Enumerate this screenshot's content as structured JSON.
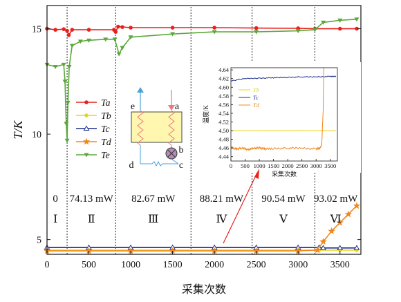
{
  "chart_data": {
    "type": "line",
    "title": "",
    "xlabel": "采集次数",
    "ylabel": "T/K",
    "xlim": [
      0,
      3750
    ],
    "ylim": [
      4.3,
      16.1
    ],
    "xticks": [
      0,
      500,
      1000,
      1500,
      2000,
      2500,
      3000,
      3500
    ],
    "yticks": [
      5,
      10,
      15
    ],
    "grid": false,
    "legend_position": "left-middle",
    "section_boundaries": [
      240,
      820,
      1720,
      2450,
      3200
    ],
    "sections": [
      {
        "roman": "Ⅰ",
        "power": "0",
        "xc": 100
      },
      {
        "roman": "Ⅱ",
        "power": "74.13 mW",
        "xc": 530
      },
      {
        "roman": "Ⅲ",
        "power": "82.67 mW",
        "xc": 1270
      },
      {
        "roman": "Ⅳ",
        "power": "88.21 mW",
        "xc": 2085
      },
      {
        "roman": "Ⅴ",
        "power": "90.54 mW",
        "xc": 2825
      },
      {
        "roman": "Ⅵ",
        "power": "93.02 mW",
        "xc": 3450
      }
    ],
    "series": [
      {
        "name": "Ta",
        "color": "#e8201e",
        "marker": "circle",
        "x": [
          0,
          100,
          200,
          240,
          260,
          300,
          500,
          800,
          820,
          850,
          900,
          1000,
          1500,
          2000,
          2500,
          3000,
          3200,
          3500,
          3700
        ],
        "y": [
          15.0,
          14.95,
          14.98,
          14.9,
          14.7,
          14.95,
          14.95,
          14.95,
          14.85,
          15.1,
          15.08,
          15.05,
          15.05,
          15.05,
          15.03,
          15.02,
          15.0,
          15.0,
          15.0
        ]
      },
      {
        "name": "Tb",
        "color": "#e8d51e",
        "marker": "circle",
        "x": [
          0,
          500,
          1000,
          1500,
          2000,
          2500,
          3000,
          3250,
          3500,
          3700
        ],
        "y": [
          4.5,
          4.5,
          4.5,
          4.5,
          4.5,
          4.5,
          4.5,
          4.5,
          4.5,
          4.5
        ]
      },
      {
        "name": "Tc",
        "color": "#1d2f8a",
        "marker": "triangle-open",
        "x": [
          0,
          500,
          1000,
          1500,
          2000,
          2500,
          3000,
          3250,
          3300,
          3500,
          3700
        ],
        "y": [
          4.62,
          4.62,
          4.62,
          4.62,
          4.62,
          4.62,
          4.62,
          4.62,
          4.6,
          4.6,
          4.6
        ]
      },
      {
        "name": "Td",
        "color": "#f0881c",
        "marker": "star",
        "x": [
          0,
          500,
          1000,
          1500,
          2000,
          2500,
          3000,
          3230,
          3300,
          3400,
          3500,
          3600,
          3700
        ],
        "y": [
          4.46,
          4.46,
          4.46,
          4.46,
          4.46,
          4.46,
          4.46,
          4.5,
          4.9,
          5.4,
          5.8,
          6.2,
          6.6
        ]
      },
      {
        "name": "Te",
        "color": "#5aa83a",
        "marker": "triangle-down",
        "x": [
          0,
          100,
          200,
          215,
          230,
          240,
          250,
          265,
          300,
          400,
          500,
          700,
          810,
          860,
          900,
          1000,
          1500,
          2000,
          2500,
          3000,
          3200,
          3300,
          3500,
          3700
        ],
        "y": [
          13.3,
          13.2,
          13.3,
          12.5,
          10.5,
          9.7,
          11.5,
          13.2,
          14.2,
          14.4,
          14.45,
          14.5,
          14.5,
          13.8,
          14.1,
          14.6,
          14.75,
          14.85,
          14.85,
          14.9,
          14.95,
          15.3,
          15.4,
          15.45
        ]
      }
    ],
    "annotations": {
      "schematic_labels": [
        "e",
        "a",
        "b",
        "c",
        "d"
      ]
    },
    "inset": {
      "type": "line",
      "xlabel": "采集次数",
      "ylabel": "温度/K",
      "xlim": [
        0,
        3750
      ],
      "ylim": [
        4.43,
        4.645
      ],
      "xticks": [
        0,
        500,
        1000,
        1500,
        2000,
        2500,
        3000,
        3500
      ],
      "yticks": [
        4.44,
        4.46,
        4.48,
        4.5,
        4.52,
        4.54,
        4.56,
        4.58,
        4.6,
        4.62,
        4.64
      ],
      "series": [
        {
          "name": "Tb",
          "color": "#e8d51e",
          "x": [
            0,
            500,
            1000,
            1500,
            2000,
            2500,
            3000,
            3500,
            3700
          ],
          "y": [
            4.5,
            4.5,
            4.5,
            4.5,
            4.5,
            4.5,
            4.5,
            4.5,
            4.5
          ]
        },
        {
          "name": "Tc",
          "color": "#1d2f8a",
          "x": [
            0,
            500,
            1000,
            1500,
            2000,
            2500,
            3000,
            3500,
            3700
          ],
          "y": [
            4.615,
            4.62,
            4.621,
            4.622,
            4.623,
            4.624,
            4.624,
            4.625,
            4.625
          ]
        },
        {
          "name": "Td",
          "color": "#f0881c",
          "x": [
            0,
            200,
            400,
            600,
            800,
            1000,
            1200,
            1500,
            2000,
            2500,
            3000,
            3150,
            3200,
            3250,
            3270
          ],
          "y": [
            4.462,
            4.458,
            4.46,
            4.457,
            4.459,
            4.461,
            4.458,
            4.459,
            4.46,
            4.46,
            4.458,
            4.46,
            4.47,
            4.55,
            4.645
          ]
        }
      ]
    }
  }
}
